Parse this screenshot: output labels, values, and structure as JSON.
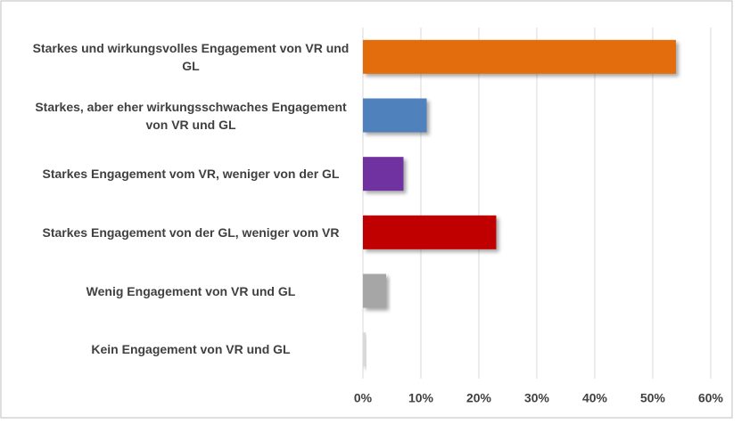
{
  "chart_data": {
    "type": "hbar",
    "categories": [
      "Starkes und wirkungsvolles Engagement von VR und GL",
      "Starkes, aber eher wirkungsschwaches Engagement von VR und GL",
      "Starkes Engagement vom VR, weniger von der GL",
      "Starkes Engagement von der GL, weniger vom VR",
      "Wenig Engagement von VR und GL",
      "Kein Engagement von VR und GL"
    ],
    "values": [
      54,
      11,
      7,
      23,
      4,
      0.5
    ],
    "colors": [
      "#e36c0a",
      "#4f81bd",
      "#7030a0",
      "#c00000",
      "#a6a6a6",
      "#d9d9d9"
    ],
    "xlim": [
      0,
      60
    ],
    "xticks": [
      {
        "value": 0,
        "label": "0%"
      },
      {
        "value": 10,
        "label": "10%"
      },
      {
        "value": 20,
        "label": "20%"
      },
      {
        "value": 30,
        "label": "30%"
      },
      {
        "value": 40,
        "label": "40%"
      },
      {
        "value": 50,
        "label": "50%"
      },
      {
        "value": 60,
        "label": "60%"
      }
    ],
    "grid": true
  }
}
